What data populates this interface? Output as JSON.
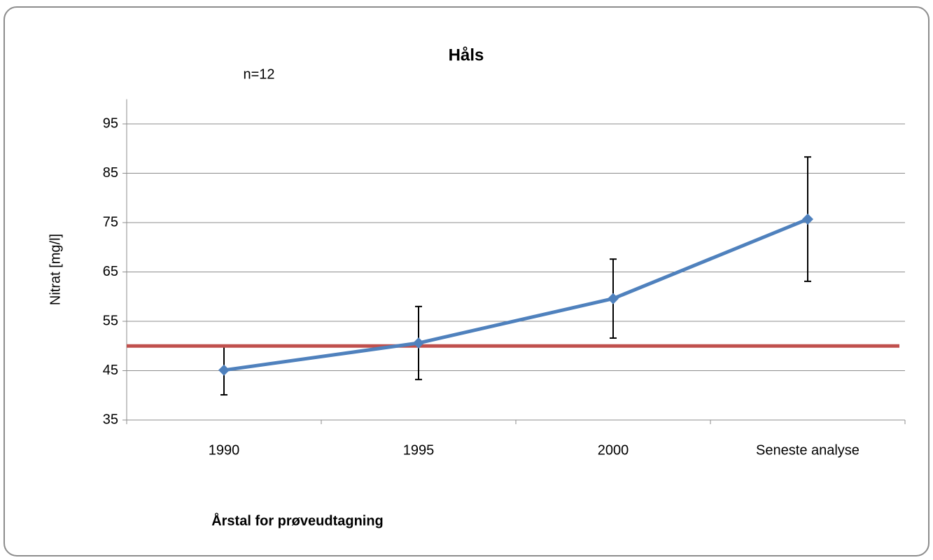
{
  "chart_data": {
    "type": "line",
    "title": "Håls",
    "annotation": "n=12",
    "x_label": "Årstal for prøveudtagning",
    "y_label": "Nitrat [mg/l]",
    "categories": [
      "1990",
      "1995",
      "2000",
      "Seneste analyse"
    ],
    "series": [
      {
        "color": "#4f81bd",
        "values": [
          45.1,
          50.6,
          59.6,
          75.7
        ],
        "errors": [
          5.0,
          7.4,
          8.0,
          12.6
        ]
      }
    ],
    "reference_line": {
      "value": 50,
      "color": "#c0504d"
    },
    "ylim": [
      35,
      100
    ],
    "yticks": [
      35,
      45,
      55,
      65,
      75,
      85,
      95
    ],
    "grid": true
  }
}
